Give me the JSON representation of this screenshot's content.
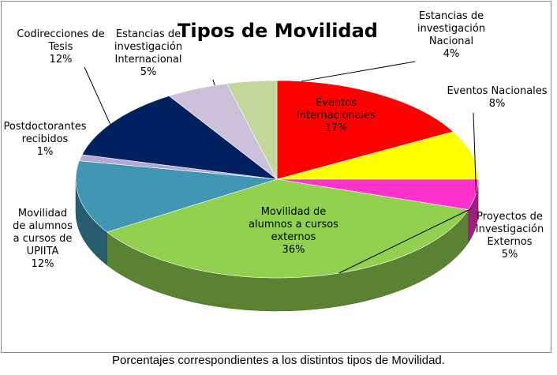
{
  "chart_data": {
    "type": "pie",
    "title": "Tipos de Movilidad",
    "slices": [
      {
        "label": [
          "Eventos",
          "Internacionales"
        ],
        "value": 17,
        "display": "17%",
        "color": "#ff0000"
      },
      {
        "label": [
          "Eventos Nacionales"
        ],
        "value": 8,
        "display": "8%",
        "color": "#ffff00"
      },
      {
        "label": [
          "Proyectos de",
          "Investigación",
          "Externos"
        ],
        "value": 5,
        "display": "5%",
        "color": "#ff33cc"
      },
      {
        "label": [
          "Movilidad de",
          "alumnos a cursos",
          "externos"
        ],
        "value": 36,
        "display": "36%",
        "color": "#92d050"
      },
      {
        "label": [
          "Movilidad",
          "de alumnos",
          "a cursos de",
          "UPIITA"
        ],
        "value": 12,
        "display": "12%",
        "color": "#4196b4"
      },
      {
        "label": [
          "Postdoctorantes",
          "recibidos"
        ],
        "value": 1,
        "display": "1%",
        "color": "#b4a7d6"
      },
      {
        "label": [
          "Codirecciones de",
          "Tesis"
        ],
        "value": 12,
        "display": "12%",
        "color": "#002060"
      },
      {
        "label": [
          "Estancias de",
          "investigación",
          "Internacional"
        ],
        "value": 5,
        "display": "5%",
        "color": "#ccc0da"
      },
      {
        "label": [
          "Estancias de",
          "investigación",
          "Nacional"
        ],
        "value": 4,
        "display": "4%",
        "color": "#c3d69b"
      }
    ],
    "legend": "none"
  },
  "caption": "Porcentajes correspondientes a los distintos tipos de Movilidad."
}
